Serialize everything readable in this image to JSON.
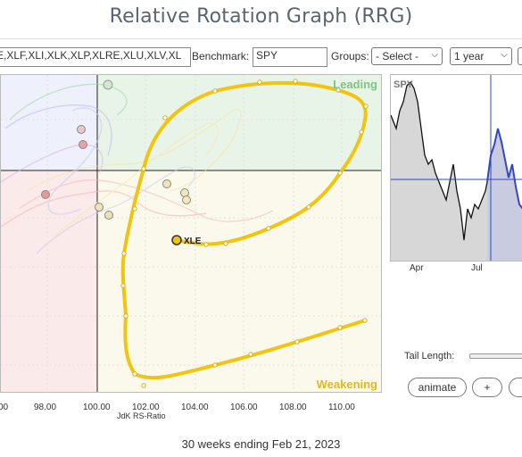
{
  "header": {
    "title": "Relative Rotation Graph (RRG)"
  },
  "controls": {
    "tickers_value": "E,XLF,XLI,XLK,XLP,XLRE,XLU,XLV,XL",
    "benchmark_label": "Benchmark:",
    "benchmark_value": "SPY",
    "groups_label": "Groups:",
    "groups_selected": "- Select -",
    "period_selected": "1 year"
  },
  "rrg": {
    "quadrants": {
      "leading": "Leading",
      "weakening": "Weakening"
    },
    "x_ticks": [
      "00",
      "98.00",
      "100.00",
      "102.00",
      "104.00",
      "106.00",
      "108.00",
      "110.00"
    ],
    "x_axis_label": "JdK RS-Ratio",
    "highlighted_symbol": "XLE",
    "colors": {
      "xle": "#f2c40e",
      "leading_bg": "#e9f4e9",
      "weakening_bg": "#fbf9ec",
      "lagging_bg": "#fbeaea",
      "improving_bg": "#eef0fb",
      "leading_text": "#7fc47f",
      "weakening_text": "#e0b820"
    }
  },
  "mini_chart": {
    "symbol": "SPY",
    "x_ticks": [
      "Apr",
      "Jul"
    ]
  },
  "footer": {
    "caption": "30 weeks ending Feb 21, 2023"
  },
  "animation": {
    "tail_length_label": "Tail Length:",
    "animate_label": "animate",
    "plus_label": "+"
  }
}
